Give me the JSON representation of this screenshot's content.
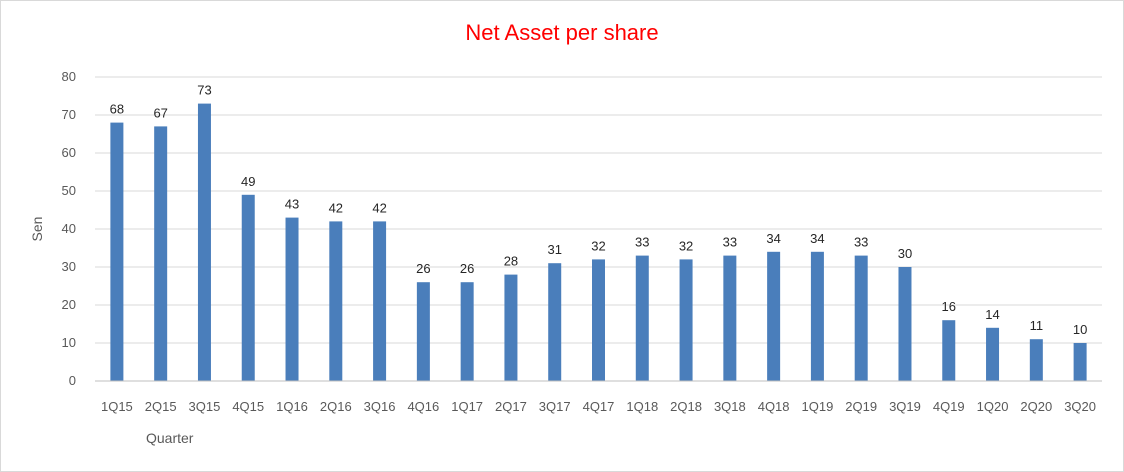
{
  "chart_data": {
    "type": "bar",
    "title": "Net Asset per share",
    "xlabel": "Quarter",
    "ylabel": "Sen",
    "ylim": [
      0,
      80
    ],
    "yticks": [
      0,
      10,
      20,
      30,
      40,
      50,
      60,
      70,
      80
    ],
    "grid": true,
    "categories": [
      "1Q15",
      "2Q15",
      "3Q15",
      "4Q15",
      "1Q16",
      "2Q16",
      "3Q16",
      "4Q16",
      "1Q17",
      "2Q17",
      "3Q17",
      "4Q17",
      "1Q18",
      "2Q18",
      "3Q18",
      "4Q18",
      "1Q19",
      "2Q19",
      "3Q19",
      "4Q19",
      "1Q20",
      "2Q20",
      "3Q20"
    ],
    "values": [
      68,
      67,
      73,
      49,
      43,
      42,
      42,
      26,
      26,
      28,
      31,
      32,
      33,
      32,
      33,
      34,
      34,
      33,
      30,
      16,
      14,
      11,
      10
    ],
    "bar_color": "#4a7ebb",
    "title_color": "#ff0000"
  }
}
